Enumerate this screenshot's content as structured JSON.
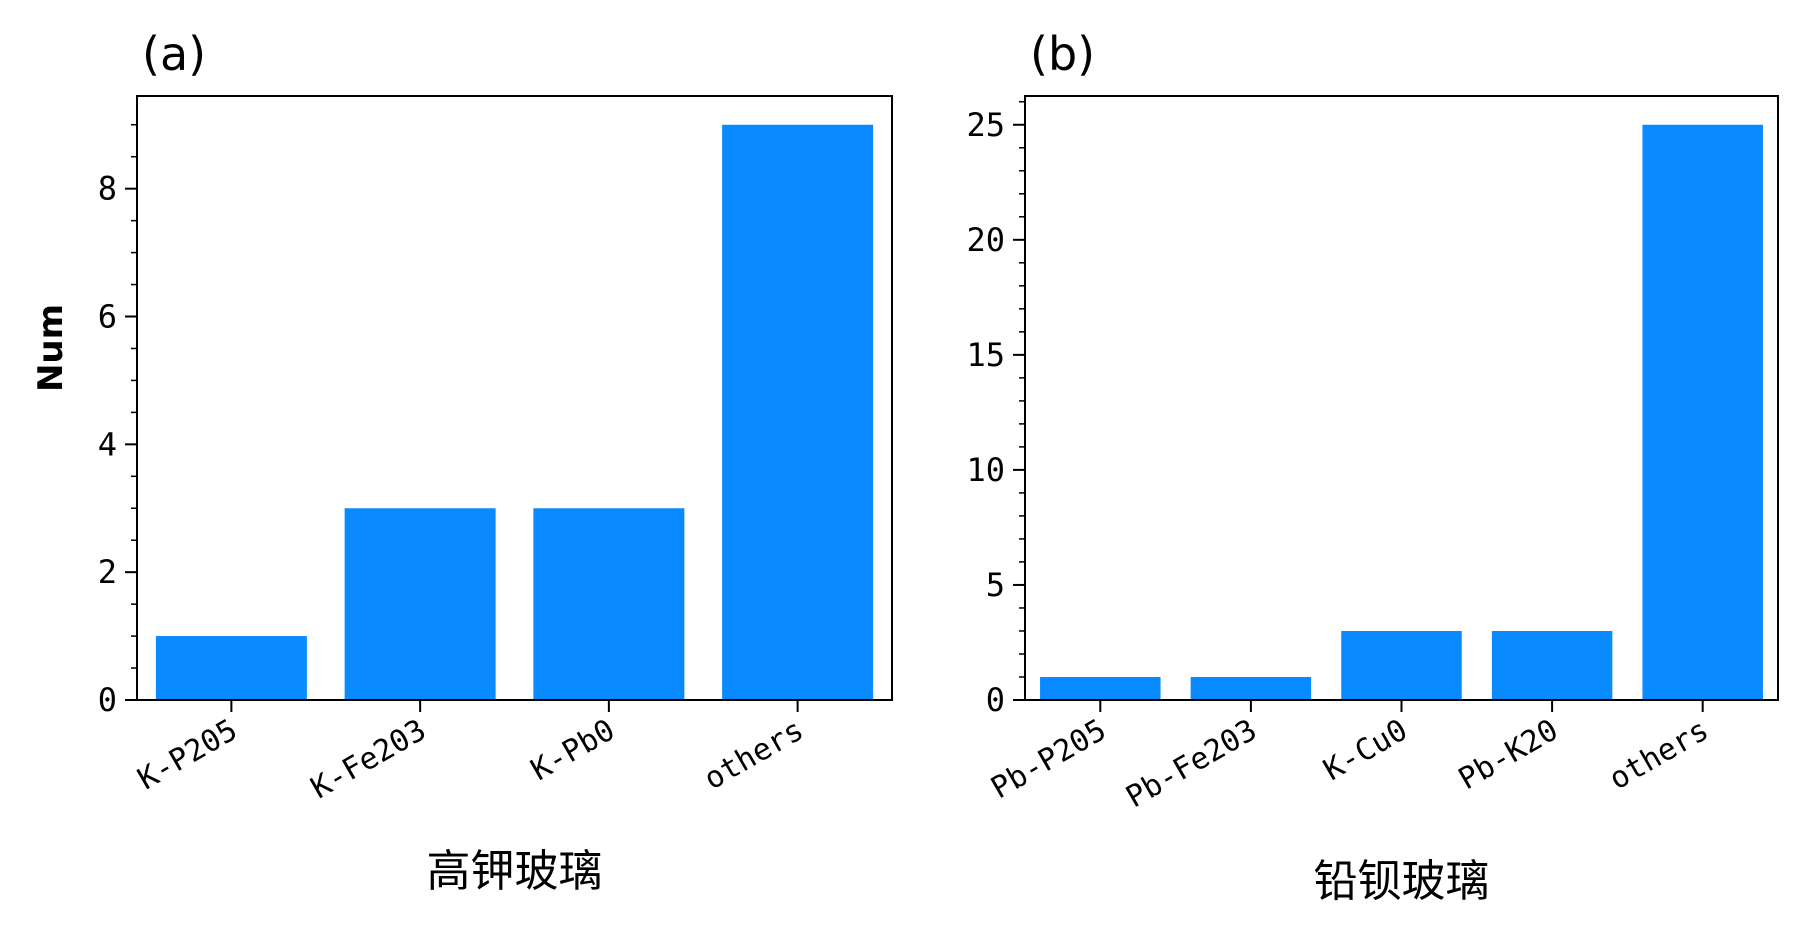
{
  "chart_data": [
    {
      "type": "bar",
      "panel_label": "(a)",
      "title": "",
      "xlabel": "高钾玻璃",
      "ylabel": "Num",
      "categories": [
        "K-P205",
        "K-Fe203",
        "K-Pb0",
        "others"
      ],
      "values": [
        1,
        3,
        3,
        9
      ],
      "ylim": [
        0,
        9.45
      ],
      "yticks": [
        0,
        2,
        4,
        6,
        8
      ],
      "grid": false,
      "legend": "none"
    },
    {
      "type": "bar",
      "panel_label": "(b)",
      "title": "",
      "xlabel": "铅钡玻璃",
      "ylabel": "",
      "categories": [
        "Pb-P205",
        "Pb-Fe203",
        "K-Cu0",
        "Pb-K20",
        "others"
      ],
      "values": [
        1,
        1,
        3,
        3,
        25
      ],
      "ylim": [
        0,
        26.25
      ],
      "yticks": [
        0,
        5,
        10,
        15,
        20,
        25
      ],
      "grid": false,
      "legend": "none"
    }
  ],
  "colors": {
    "bar": "#0a8aff",
    "axis": "#000000"
  }
}
